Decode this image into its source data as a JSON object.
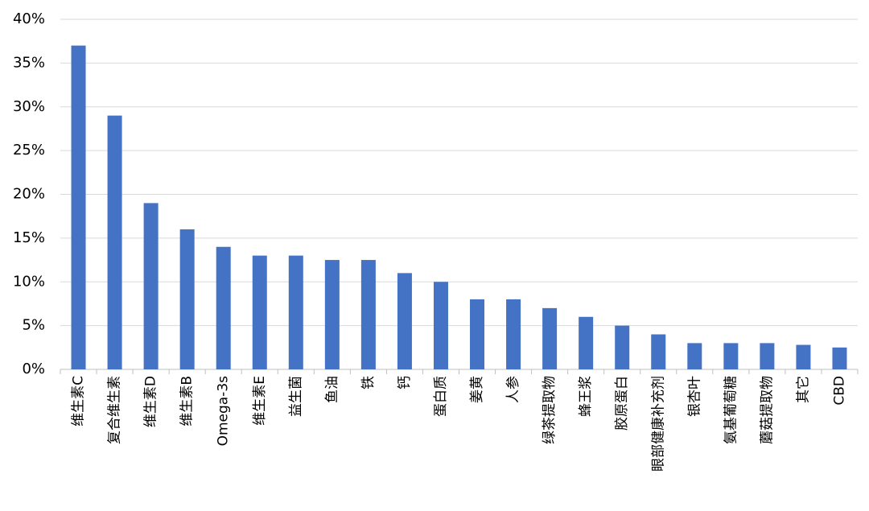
{
  "chart_data": {
    "type": "bar",
    "categories": [
      "维生素C",
      "复合维生素",
      "维生素D",
      "维生素B",
      "Omega-3s",
      "维生素E",
      "益生菌",
      "鱼油",
      "铁",
      "钙",
      "蛋白质",
      "姜黄",
      "人参",
      "绿茶提取物",
      "蜂王浆",
      "胶原蛋白",
      "眼部健康补充剂",
      "银杏叶",
      "氨基葡萄糖",
      "蘑菇提取物",
      "其它",
      "CBD"
    ],
    "values": [
      37,
      29,
      19,
      16,
      14,
      13,
      13,
      12.5,
      12.5,
      11,
      10,
      8,
      8,
      7,
      6,
      5,
      4,
      3,
      3,
      3,
      2.8,
      2.5
    ],
    "color": "#4472c4",
    "ylim": [
      0,
      40
    ],
    "yticks": [
      {
        "value": 0,
        "label": "0%"
      },
      {
        "value": 5,
        "label": "5%"
      },
      {
        "value": 10,
        "label": "10%"
      },
      {
        "value": 15,
        "label": "15%"
      },
      {
        "value": 20,
        "label": "20%"
      },
      {
        "value": 25,
        "label": "25%"
      },
      {
        "value": 30,
        "label": "30%"
      },
      {
        "value": 35,
        "label": "35%"
      },
      {
        "value": 40,
        "label": "40%"
      }
    ],
    "grid": true
  }
}
